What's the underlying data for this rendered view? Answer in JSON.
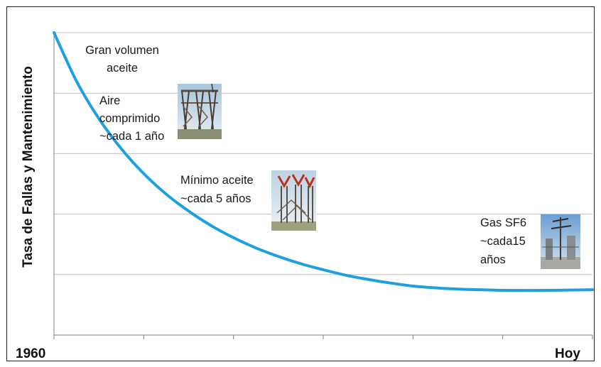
{
  "chart_data": {
    "type": "line",
    "title": "",
    "ylabel": "Tasa de Fallas y Mantenimiento",
    "xlabel": "",
    "x_tick_labels": [
      "1960",
      "Hoy"
    ],
    "x_range": [
      0,
      6
    ],
    "ylim": [
      0,
      5
    ],
    "grid": true,
    "legend": "none",
    "series": [
      {
        "color": "#1ea0e0",
        "points": [
          [
            0.0,
            5.0
          ],
          [
            0.25,
            4.2
          ],
          [
            0.5,
            3.58
          ],
          [
            0.75,
            3.08
          ],
          [
            1.0,
            2.67
          ],
          [
            1.25,
            2.33
          ],
          [
            1.5,
            2.05
          ],
          [
            1.75,
            1.81
          ],
          [
            2.0,
            1.61
          ],
          [
            2.25,
            1.44
          ],
          [
            2.5,
            1.3
          ],
          [
            2.75,
            1.18
          ],
          [
            3.0,
            1.08
          ],
          [
            3.25,
            0.99
          ],
          [
            3.5,
            0.92
          ],
          [
            3.75,
            0.86
          ],
          [
            4.0,
            0.81
          ],
          [
            4.25,
            0.78
          ],
          [
            4.5,
            0.76
          ],
          [
            4.75,
            0.75
          ],
          [
            5.0,
            0.74
          ],
          [
            5.5,
            0.74
          ],
          [
            6.0,
            0.75
          ]
        ]
      }
    ],
    "annotations": [
      {
        "lines": [
          "Gran volumen",
          "aceite"
        ],
        "image": "oil-breaker-photo"
      },
      {
        "lines": [
          "Aire",
          "comprimido",
          "~cada 1 año"
        ],
        "image": "air-blast-breaker-photo"
      },
      {
        "lines": [
          "Mínimo aceite",
          "~cada 5 años"
        ],
        "image": "minimum-oil-breaker-photo"
      },
      {
        "lines": [
          "Gas SF6",
          "~cada15",
          "años"
        ],
        "image": "sf6-breaker-photo"
      }
    ]
  },
  "colors": {
    "curve": "#1ea0e0",
    "grid": "#bfbfbf",
    "axis": "#7f7f7f",
    "text": "#111111"
  }
}
